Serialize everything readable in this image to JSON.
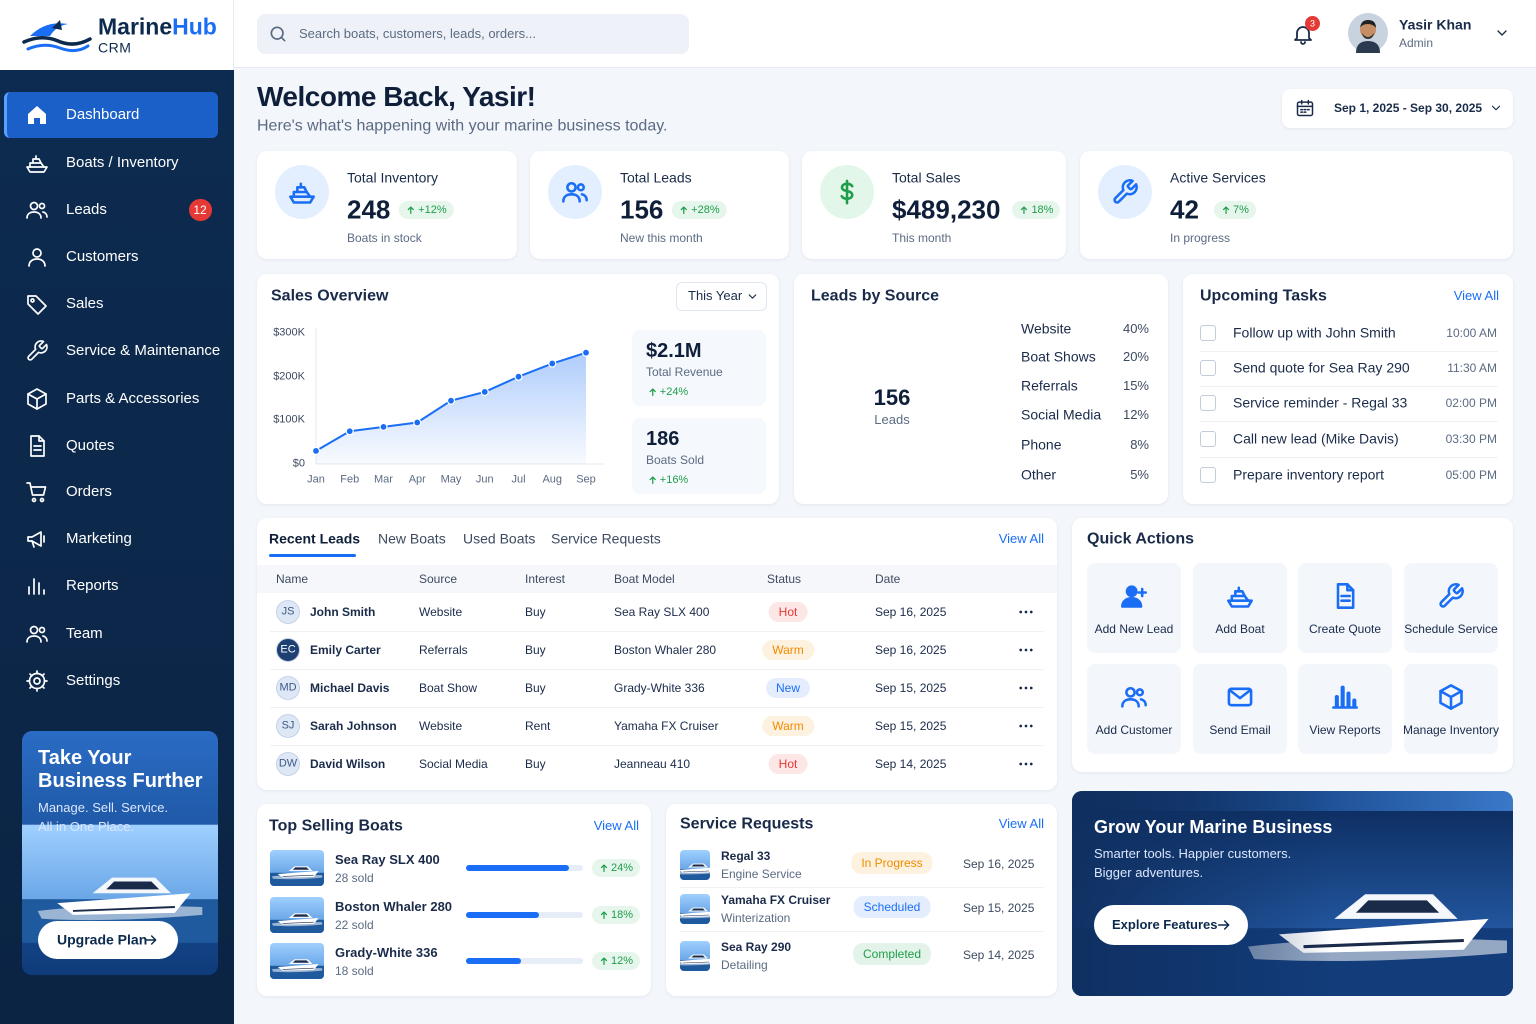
{
  "brand": {
    "name": [
      "Marine",
      "Hub"
    ],
    "sub": "CRM"
  },
  "search_placeholder": "Search boats, customers, leads, orders...",
  "notifications": "3",
  "user": {
    "name": "Yasir Khan",
    "role": "Admin"
  },
  "nav": [
    {
      "label": "Dashboard"
    },
    {
      "label": "Boats / Inventory"
    },
    {
      "label": "Leads",
      "badge": "12"
    },
    {
      "label": "Customers"
    },
    {
      "label": "Sales"
    },
    {
      "label": "Service & Maintenance"
    },
    {
      "label": "Parts & Accessories"
    },
    {
      "label": "Quotes"
    },
    {
      "label": "Orders"
    },
    {
      "label": "Marketing"
    },
    {
      "label": "Reports"
    },
    {
      "label": "Team"
    },
    {
      "label": "Settings"
    }
  ],
  "promo": {
    "title_lines": [
      "Take Your",
      "Business Further"
    ],
    "text_lines": [
      "Manage. Sell. Service.",
      "All in One Place."
    ],
    "button": "Upgrade Plan"
  },
  "welcome": {
    "title": "Welcome Back, Yasir!",
    "subtitle": "Here's what's happening with your marine business today."
  },
  "date_range": "Sep 1, 2025 - Sep 30, 2025",
  "kpis": [
    {
      "label": "Total Inventory",
      "value": "248",
      "change": "+12%",
      "note": "Boats in stock"
    },
    {
      "label": "Total Leads",
      "value": "156",
      "change": "+28%",
      "note": "New this month"
    },
    {
      "label": "Total Sales",
      "value": "$489,230",
      "change": "18%",
      "note": "This month"
    },
    {
      "label": "Active Services",
      "value": "42",
      "change": "7%",
      "note": "In progress"
    }
  ],
  "sales_overview": {
    "title": "Sales Overview",
    "period": "This Year",
    "chart": {
      "type": "line",
      "categories": [
        "Jan",
        "Feb",
        "Mar",
        "Apr",
        "May",
        "Jun",
        "Jul",
        "Aug",
        "Sep"
      ],
      "values": [
        30000,
        75000,
        85000,
        95000,
        145000,
        165000,
        200000,
        230000,
        255000
      ],
      "color": "#1a6ef5",
      "ylim": [
        0,
        300000
      ],
      "yticks": [
        {
          "value": 0,
          "label": "$0"
        },
        {
          "value": 100000,
          "label": "$100K"
        },
        {
          "value": 200000,
          "label": "$200K"
        },
        {
          "value": 300000,
          "label": "$300K"
        }
      ],
      "grid": false
    },
    "summary": [
      {
        "value": "$2.1M",
        "label": "Total Revenue",
        "change": "+24%"
      },
      {
        "value": "186",
        "label": "Boats Sold",
        "change": "+16%"
      }
    ]
  },
  "leads_by_source": {
    "title": "Leads by Source",
    "center_value": "156",
    "center_label": "Leads",
    "chart": {
      "type": "pie",
      "categories": [
        "Website",
        "Boat Shows",
        "Referrals",
        "Social Media",
        "Phone",
        "Other"
      ],
      "values": [
        40,
        20,
        15,
        12,
        8,
        5
      ],
      "value_labels": [
        "40%",
        "20%",
        "15%",
        "12%",
        "8%",
        "5%"
      ],
      "colors": [
        "#1a6ef5",
        "#5457e0",
        "#7f6cf2",
        "#b69af7",
        "#f5a524",
        "#f7c36b"
      ]
    }
  },
  "tasks": {
    "title": "Upcoming Tasks",
    "view_all": "View All",
    "items": [
      {
        "text": "Follow up with John Smith",
        "time": "10:00 AM"
      },
      {
        "text": "Send quote for Sea Ray 290",
        "time": "11:30 AM"
      },
      {
        "text": "Service reminder - Regal 33",
        "time": "02:00 PM"
      },
      {
        "text": "Call new lead (Mike Davis)",
        "time": "03:30 PM"
      },
      {
        "text": "Prepare inventory report",
        "time": "05:00 PM"
      }
    ]
  },
  "recent_leads": {
    "tabs": [
      "Recent Leads",
      "New Boats",
      "Used Boats",
      "Service Requests"
    ],
    "view_all": "View All",
    "columns": [
      "Name",
      "Source",
      "Interest",
      "Boat Model",
      "Status",
      "Date"
    ],
    "rows": [
      {
        "initials": "JS",
        "avatar_color": "#dde7f5",
        "name": "John Smith",
        "source": "Website",
        "interest": "Buy",
        "model": "Sea Ray SLX 400",
        "status": "Hot",
        "status_color": "#e53935",
        "date": "Sep 16, 2025"
      },
      {
        "initials": "EC",
        "avatar_color": "#1d3f72",
        "name": "Emily Carter",
        "source": "Referrals",
        "interest": "Buy",
        "model": "Boston Whaler 280",
        "status": "Warm",
        "status_color": "#f08c00",
        "date": "Sep 16, 2025"
      },
      {
        "initials": "MD",
        "avatar_color": "#dde7f5",
        "name": "Michael Davis",
        "source": "Boat Show",
        "interest": "Buy",
        "model": "Grady-White 336",
        "status": "New",
        "status_color": "#1a6ef5",
        "date": "Sep 15, 2025"
      },
      {
        "initials": "SJ",
        "avatar_color": "#dde7f5",
        "name": "Sarah Johnson",
        "source": "Website",
        "interest": "Rent",
        "model": "Yamaha FX Cruiser",
        "status": "Warm",
        "status_color": "#f08c00",
        "date": "Sep 15, 2025"
      },
      {
        "initials": "DW",
        "avatar_color": "#dde7f5",
        "name": "David Wilson",
        "source": "Social Media",
        "interest": "Buy",
        "model": "Jeanneau 410",
        "status": "Hot",
        "status_color": "#e53935",
        "date": "Sep 14, 2025"
      }
    ]
  },
  "quick_actions": {
    "title": "Quick Actions",
    "items": [
      "Add New Lead",
      "Add Boat",
      "Create Quote",
      "Schedule Service",
      "Add Customer",
      "Send Email",
      "View Reports",
      "Manage Inventory"
    ]
  },
  "top_selling": {
    "title": "Top Selling Boats",
    "view_all": "View All",
    "items": [
      {
        "name": "Sea Ray SLX 400",
        "sold": "28 sold",
        "change": "24%",
        "progress": 88
      },
      {
        "name": "Boston Whaler 280",
        "sold": "22 sold",
        "change": "18%",
        "progress": 62
      },
      {
        "name": "Grady-White 336",
        "sold": "18 sold",
        "change": "12%",
        "progress": 47
      }
    ]
  },
  "service_requests": {
    "title": "Service Requests",
    "view_all": "View All",
    "items": [
      {
        "boat": "Regal 33",
        "service": "Engine Service",
        "status": "In Progress",
        "status_color": "#f08c00",
        "date": "Sep 16, 2025"
      },
      {
        "boat": "Yamaha FX Cruiser",
        "service": "Winterization",
        "status": "Scheduled",
        "status_color": "#1a6ef5",
        "date": "Sep 15, 2025"
      },
      {
        "boat": "Sea Ray 290",
        "service": "Detailing",
        "status": "Completed",
        "status_color": "#1e9e4a",
        "date": "Sep 14, 2025"
      }
    ]
  },
  "banner": {
    "title": "Grow Your Marine Business",
    "text_lines": [
      "Smarter tools. Happier customers.",
      "Bigger adventures."
    ],
    "button": "Explore Features"
  }
}
